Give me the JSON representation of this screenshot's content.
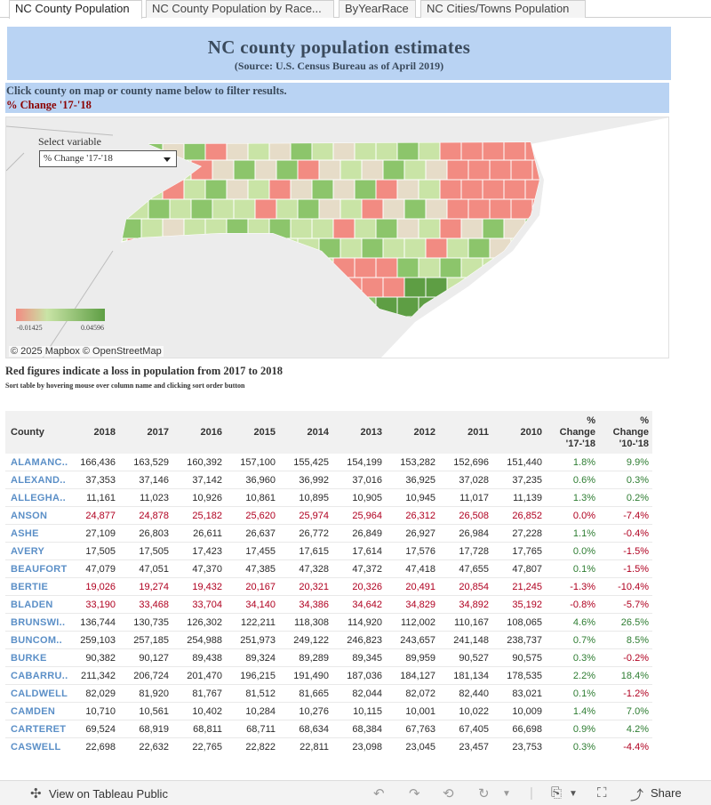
{
  "tabs": [
    {
      "label": "NC County Population"
    },
    {
      "label": "NC County Population by Race..."
    },
    {
      "label": "ByYearRace"
    },
    {
      "label": "NC Cities/Towns Population"
    }
  ],
  "header": {
    "title": "NC county population estimates",
    "source": "(Source: U.S. Census Bureau as of April 2019)"
  },
  "instructions": {
    "line1": "Click county on map or county name below to filter results.",
    "line2": "% Change '17-'18"
  },
  "map": {
    "select_label": "Select variable",
    "select_value": "% Change '17-'18",
    "legend_min": "-0.01425",
    "legend_max": "0.04596",
    "attribution": "© 2025 Mapbox © OpenStreetMap",
    "colors": {
      "loss": "#f28b82",
      "neutral": "#e6dcc8",
      "light_gain": "#c9e4a6",
      "gain": "#8cc56b",
      "high_gain": "#5e9e44"
    }
  },
  "notes": {
    "line1": "Red figures indicate a loss in population from 2017 to 2018",
    "line2": "Sort table by hovering mouse over column name and clicking sort order button"
  },
  "table": {
    "headers": [
      "County",
      "2018",
      "2017",
      "2016",
      "2015",
      "2014",
      "2013",
      "2012",
      "2011",
      "2010",
      "%\nChange\n'17-'18",
      "%\nChange\n'10-'18"
    ],
    "rows": [
      {
        "county": "ALAMANC..",
        "v": [
          "166,436",
          "163,529",
          "160,392",
          "157,100",
          "155,425",
          "154,199",
          "153,282",
          "152,696",
          "151,440"
        ],
        "p1": "1.8%",
        "p2": "9.9%"
      },
      {
        "county": "ALEXAND..",
        "v": [
          "37,353",
          "37,146",
          "37,142",
          "36,960",
          "36,992",
          "37,016",
          "36,925",
          "37,028",
          "37,235"
        ],
        "p1": "0.6%",
        "p2": "0.3%"
      },
      {
        "county": "ALLEGHA..",
        "v": [
          "11,161",
          "11,023",
          "10,926",
          "10,861",
          "10,895",
          "10,905",
          "10,945",
          "11,017",
          "11,139"
        ],
        "p1": "1.3%",
        "p2": "0.2%"
      },
      {
        "county": "ANSON",
        "v": [
          "24,877",
          "24,878",
          "25,182",
          "25,620",
          "25,974",
          "25,964",
          "26,312",
          "26,508",
          "26,852"
        ],
        "p1": "0.0%",
        "p2": "-7.4%"
      },
      {
        "county": "ASHE",
        "v": [
          "27,109",
          "26,803",
          "26,611",
          "26,637",
          "26,772",
          "26,849",
          "26,927",
          "26,984",
          "27,228"
        ],
        "p1": "1.1%",
        "p2": "-0.4%"
      },
      {
        "county": "AVERY",
        "v": [
          "17,505",
          "17,505",
          "17,423",
          "17,455",
          "17,615",
          "17,614",
          "17,576",
          "17,728",
          "17,765"
        ],
        "p1": "0.0%",
        "p2": "-1.5%"
      },
      {
        "county": "BEAUFORT",
        "v": [
          "47,079",
          "47,051",
          "47,370",
          "47,385",
          "47,328",
          "47,372",
          "47,418",
          "47,655",
          "47,807"
        ],
        "p1": "0.1%",
        "p2": "-1.5%"
      },
      {
        "county": "BERTIE",
        "v": [
          "19,026",
          "19,274",
          "19,432",
          "20,167",
          "20,321",
          "20,326",
          "20,491",
          "20,854",
          "21,245"
        ],
        "p1": "-1.3%",
        "p2": "-10.4%"
      },
      {
        "county": "BLADEN",
        "v": [
          "33,190",
          "33,468",
          "33,704",
          "34,140",
          "34,386",
          "34,642",
          "34,829",
          "34,892",
          "35,192"
        ],
        "p1": "-0.8%",
        "p2": "-5.7%"
      },
      {
        "county": "BRUNSWI..",
        "v": [
          "136,744",
          "130,735",
          "126,302",
          "122,211",
          "118,308",
          "114,920",
          "112,002",
          "110,167",
          "108,065"
        ],
        "p1": "4.6%",
        "p2": "26.5%"
      },
      {
        "county": "BUNCOM..",
        "v": [
          "259,103",
          "257,185",
          "254,988",
          "251,973",
          "249,122",
          "246,823",
          "243,657",
          "241,148",
          "238,737"
        ],
        "p1": "0.7%",
        "p2": "8.5%"
      },
      {
        "county": "BURKE",
        "v": [
          "90,382",
          "90,127",
          "89,438",
          "89,324",
          "89,289",
          "89,345",
          "89,959",
          "90,527",
          "90,575"
        ],
        "p1": "0.3%",
        "p2": "-0.2%"
      },
      {
        "county": "CABARRU..",
        "v": [
          "211,342",
          "206,724",
          "201,470",
          "196,215",
          "191,490",
          "187,036",
          "184,127",
          "181,134",
          "178,535"
        ],
        "p1": "2.2%",
        "p2": "18.4%"
      },
      {
        "county": "CALDWELL",
        "v": [
          "82,029",
          "81,920",
          "81,767",
          "81,512",
          "81,665",
          "82,044",
          "82,072",
          "82,440",
          "83,021"
        ],
        "p1": "0.1%",
        "p2": "-1.2%"
      },
      {
        "county": "CAMDEN",
        "v": [
          "10,710",
          "10,561",
          "10,402",
          "10,284",
          "10,276",
          "10,115",
          "10,001",
          "10,022",
          "10,009"
        ],
        "p1": "1.4%",
        "p2": "7.0%"
      },
      {
        "county": "CARTERET",
        "v": [
          "69,524",
          "68,919",
          "68,811",
          "68,711",
          "68,634",
          "68,384",
          "67,763",
          "67,405",
          "66,698"
        ],
        "p1": "0.9%",
        "p2": "4.2%"
      },
      {
        "county": "CASWELL",
        "v": [
          "22,698",
          "22,632",
          "22,765",
          "22,822",
          "22,811",
          "23,098",
          "23,045",
          "23,457",
          "23,753"
        ],
        "p1": "0.3%",
        "p2": "-4.4%"
      }
    ]
  },
  "footer": {
    "view_label": "View on Tableau Public",
    "share_label": "Share"
  }
}
